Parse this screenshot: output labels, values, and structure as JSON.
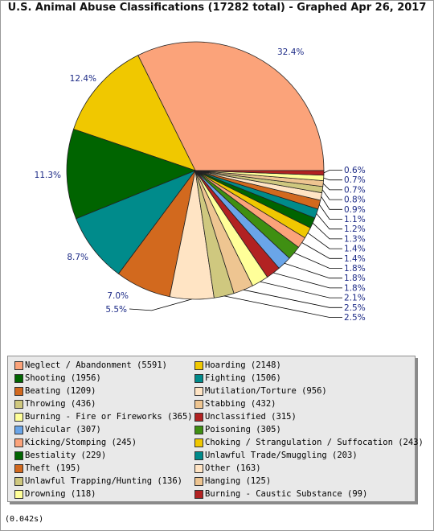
{
  "title": "U.S. Animal Abuse Classifications (17282 total) - Graphed Apr 26, 2017",
  "footer": "(0.042s)",
  "chart_data": {
    "type": "pie",
    "total": 17282,
    "slices": [
      {
        "label": "Neglect / Abandonment",
        "count": 5591,
        "percent": "32.4%",
        "color": "#fba37a"
      },
      {
        "label": "Hoarding",
        "count": 2148,
        "percent": "12.4%",
        "color": "#f0c800"
      },
      {
        "label": "Shooting",
        "count": 1956,
        "percent": "11.3%",
        "color": "#006400"
      },
      {
        "label": "Fighting",
        "count": 1506,
        "percent": "8.7%",
        "color": "#008b8b"
      },
      {
        "label": "Beating",
        "count": 1209,
        "percent": "7.0%",
        "color": "#d2691e"
      },
      {
        "label": "Mutilation/Torture",
        "count": 956,
        "percent": "5.5%",
        "color": "#ffe4c4"
      },
      {
        "label": "Throwing",
        "count": 436,
        "percent": "2.5%",
        "color": "#cfc87f"
      },
      {
        "label": "Stabbing",
        "count": 432,
        "percent": "2.5%",
        "color": "#eec591"
      },
      {
        "label": "Burning - Fire or Fireworks",
        "count": 365,
        "percent": "2.1%",
        "color": "#ffff99"
      },
      {
        "label": "Unclassified",
        "count": 315,
        "percent": "1.8%",
        "color": "#b22222"
      },
      {
        "label": "Vehicular",
        "count": 307,
        "percent": "1.8%",
        "color": "#6aa5e8"
      },
      {
        "label": "Poisoning",
        "count": 305,
        "percent": "1.8%",
        "color": "#3f8f12"
      },
      {
        "label": "Kicking/Stomping",
        "count": 245,
        "percent": "1.4%",
        "color": "#fba37a"
      },
      {
        "label": "Choking / Strangulation / Suffocation",
        "count": 243,
        "percent": "1.4%",
        "color": "#f0c800"
      },
      {
        "label": "Bestiality",
        "count": 229,
        "percent": "1.3%",
        "color": "#006400"
      },
      {
        "label": "Unlawful Trade/Smuggling",
        "count": 203,
        "percent": "1.2%",
        "color": "#008b8b"
      },
      {
        "label": "Theft",
        "count": 195,
        "percent": "1.1%",
        "color": "#d2691e"
      },
      {
        "label": "Other",
        "count": 163,
        "percent": "0.9%",
        "color": "#ffe4c4"
      },
      {
        "label": "Unlawful Trapping/Hunting",
        "count": 136,
        "percent": "0.8%",
        "color": "#cfc87f"
      },
      {
        "label": "Hanging",
        "count": 125,
        "percent": "0.7%",
        "color": "#eec591"
      },
      {
        "label": "Drowning",
        "count": 118,
        "percent": "0.7%",
        "color": "#ffff99"
      },
      {
        "label": "Burning - Caustic Substance",
        "count": 99,
        "percent": "0.6%",
        "color": "#b22222"
      }
    ],
    "legend": [
      "Neglect / Abandonment (5591)",
      "Hoarding (2148)",
      "Shooting (1956)",
      "Fighting (1506)",
      "Beating (1209)",
      "Mutilation/Torture (956)",
      "Throwing (436)",
      "Stabbing (432)",
      "Burning - Fire or Fireworks (365)",
      "Unclassified (315)",
      "Vehicular (307)",
      "Poisoning (305)",
      "Kicking/Stomping (245)",
      "Choking / Strangulation / Suffocation (243)",
      "Bestiality (229)",
      "Unlawful Trade/Smuggling (203)",
      "Theft (195)",
      "Other (163)",
      "Unlawful Trapping/Hunting (136)",
      "Hanging (125)",
      "Drowning (118)",
      "Burning - Caustic Substance (99)"
    ],
    "legend_placement": "bottom"
  }
}
